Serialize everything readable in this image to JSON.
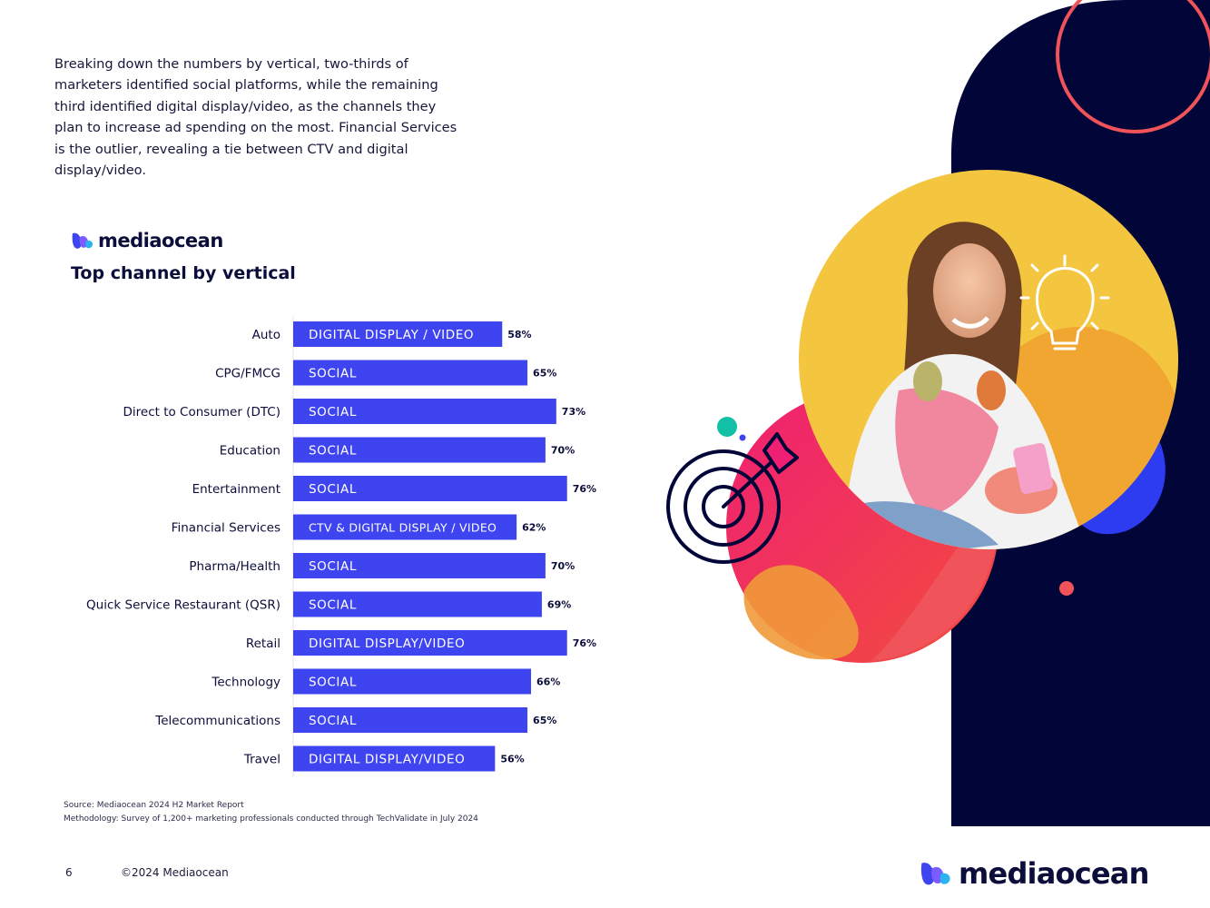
{
  "intro": {
    "text": "Breaking down the numbers by vertical, two-thirds of marketers identified social platforms, while the remaining third identified digital display/video, as the channels they plan to increase ad spending on the most. Financial Services is the outlier, revealing a tie between CTV and digital display/video."
  },
  "brand": {
    "name": "mediaocean"
  },
  "chart_data": {
    "type": "bar",
    "orientation": "horizontal",
    "title": "Top channel by vertical",
    "categories": [
      "Auto",
      "CPG/FMCG",
      "Direct to Consumer (DTC)",
      "Education",
      "Entertainment",
      "Financial Services",
      "Pharma/Health",
      "Quick Service Restaurant (QSR)",
      "Retail",
      "Technology",
      "Telecommunications",
      "Travel"
    ],
    "values": [
      58,
      65,
      73,
      70,
      76,
      62,
      70,
      69,
      76,
      66,
      65,
      56
    ],
    "value_labels": [
      "58%",
      "65%",
      "73%",
      "70%",
      "76%",
      "62%",
      "70%",
      "69%",
      "76%",
      "66%",
      "65%",
      "56%"
    ],
    "channels": [
      "DIGITAL DISPLAY / VIDEO",
      "SOCIAL",
      "SOCIAL",
      "SOCIAL",
      "SOCIAL",
      "CTV & DIGITAL DISPLAY / VIDEO",
      "SOCIAL",
      "SOCIAL",
      "DIGITAL DISPLAY/VIDEO",
      "SOCIAL",
      "SOCIAL",
      "DIGITAL DISPLAY/VIDEO"
    ],
    "bar_color": "#3e44ef",
    "grid": false,
    "legend": "none"
  },
  "source": {
    "line1": "Source: Mediaocean 2024 H2 Market Report",
    "line2": "Methodology: Survey of 1,200+ marketing professionals conducted through TechValidate in July 2024"
  },
  "footer": {
    "page_number": "6",
    "copyright": "©2024 Mediaocean"
  },
  "colors": {
    "navy": "#020537",
    "yellow": "#f4c63f",
    "coral": "#f0535a",
    "magenta": "#ee1f6b",
    "teal": "#12c0a6",
    "blue": "#3e44ef"
  },
  "icons": [
    "mediaocean-logo-icon",
    "target-icon",
    "lightbulb-icon",
    "person-photo"
  ]
}
